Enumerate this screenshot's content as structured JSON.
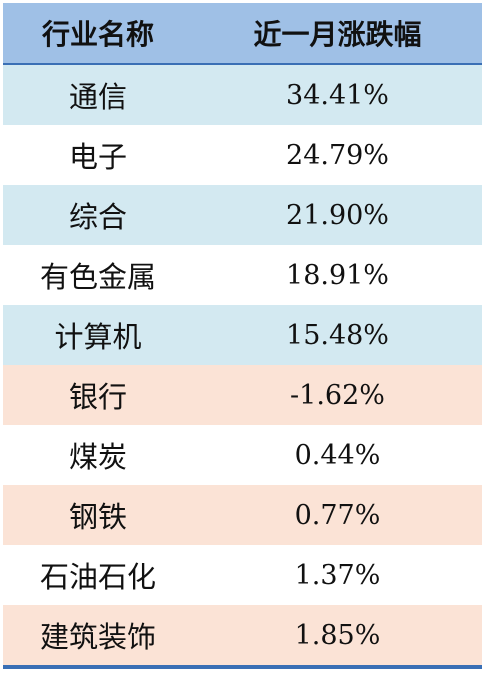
{
  "colors": {
    "header_bg": "#9fc0e6",
    "gainer_bg": "#d3e9f1",
    "loser_bg": "#fbe3d6",
    "plain_bg": "#ffffff",
    "rule": "#3a6fb5"
  },
  "chart_data": {
    "type": "table",
    "columns": [
      "行业名称",
      "近一月涨跌幅"
    ],
    "rows": [
      {
        "industry": "通信",
        "change": "34.41%",
        "fill": "gainer"
      },
      {
        "industry": "电子",
        "change": "24.79%",
        "fill": "plain"
      },
      {
        "industry": "综合",
        "change": "21.90%",
        "fill": "gainer"
      },
      {
        "industry": "有色金属",
        "change": "18.91%",
        "fill": "plain"
      },
      {
        "industry": "计算机",
        "change": "15.48%",
        "fill": "gainer"
      },
      {
        "industry": "银行",
        "change": "-1.62%",
        "fill": "loser"
      },
      {
        "industry": "煤炭",
        "change": "0.44%",
        "fill": "plain"
      },
      {
        "industry": "钢铁",
        "change": "0.77%",
        "fill": "loser"
      },
      {
        "industry": "石油石化",
        "change": "1.37%",
        "fill": "plain"
      },
      {
        "industry": "建筑装饰",
        "change": "1.85%",
        "fill": "loser"
      }
    ]
  }
}
